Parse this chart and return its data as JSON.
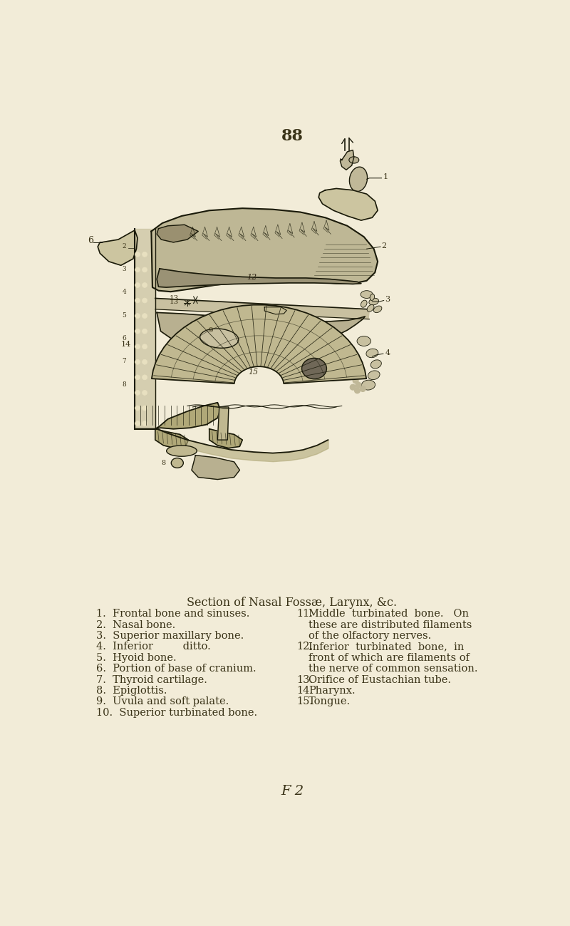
{
  "page_number": "88",
  "background_color": "#f2ecd8",
  "title": "Section of Nasal Fossæ, Larynx, &c.",
  "left_column": [
    "1.  Frontal bone and sinuses.",
    "2.  Nasal bone.",
    "3.  Superior maxillary bone.",
    "4.  Inferior         ditto.",
    "5.  Hyoid bone.",
    "6.  Portion of base of cranium.",
    "7.  Thyroid cartilage.",
    "8.  Epiglottis.",
    "9.  Uvula and soft palate.",
    "10.  Superior turbinated bone."
  ],
  "right_col_items": [
    {
      "num": "11.",
      "lines": [
        "Middle  turbinated  bone.   On",
        "these are distributed filaments",
        "of the olfactory nerves."
      ]
    },
    {
      "num": "12.",
      "lines": [
        "Inferior  turbinated  bone,  in",
        "front of which are filaments of",
        "the nerve of common sensation."
      ]
    },
    {
      "num": "13.",
      "lines": [
        "Orifice of Eustachian tube."
      ]
    },
    {
      "num": "14.",
      "lines": [
        "Pharynx."
      ]
    },
    {
      "num": "15.",
      "lines": [
        "Tongue."
      ]
    }
  ],
  "footer": "F 2",
  "text_color": "#3a3318",
  "outline_color": "#1a1a0a",
  "fill_main": "#b5ae8a",
  "fill_light": "#ccc5a0",
  "fill_dark": "#8a8468",
  "fill_bone": "#d0c9a8",
  "font_size_body": 10.5,
  "font_size_title": 11.5,
  "font_size_page_num": 16,
  "font_size_footer": 14
}
